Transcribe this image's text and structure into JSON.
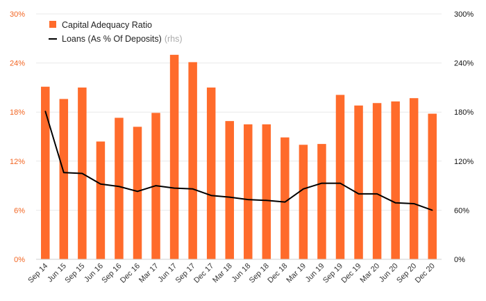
{
  "chart_data": {
    "type": "bar",
    "categories": [
      "Sep 14",
      "Jun 15",
      "Sep 15",
      "Jun 16",
      "Sep 16",
      "Dec 16",
      "Mar 17",
      "Jun 17",
      "Sep 17",
      "Dec 17",
      "Mar 18",
      "Jun 18",
      "Sep 18",
      "Dec 18",
      "Mar 19",
      "Jun 19",
      "Sep 19",
      "Dec 19",
      "Mar 20",
      "Jun 20",
      "Sep 20",
      "Dec 20"
    ],
    "series": [
      {
        "name": "Capital Adequacy Ratio",
        "type": "bar",
        "axis": "left",
        "color": "#ff6b2b",
        "values": [
          21.1,
          19.6,
          21.0,
          14.4,
          17.3,
          16.2,
          17.9,
          25.0,
          24.1,
          21.0,
          16.9,
          16.5,
          16.5,
          14.9,
          14.0,
          14.1,
          20.1,
          18.8,
          19.1,
          19.3,
          19.7,
          17.8
        ]
      },
      {
        "name": "Loans (As % Of Deposits)",
        "note": "(rhs)",
        "type": "line",
        "axis": "right",
        "color": "#000000",
        "values": [
          181,
          106,
          105,
          92,
          89,
          83,
          90,
          87,
          86,
          78,
          76,
          73,
          72,
          70,
          86,
          93,
          93,
          80,
          80,
          69,
          68,
          60
        ]
      }
    ],
    "y_left": {
      "min": 0,
      "max": 30,
      "ticks": [
        0,
        6,
        12,
        18,
        24,
        30
      ],
      "tick_labels": [
        "0%",
        "6%",
        "12%",
        "18%",
        "24%",
        "30%"
      ]
    },
    "y_right": {
      "min": 0,
      "max": 300,
      "ticks": [
        0,
        60,
        120,
        180,
        240,
        300
      ],
      "tick_labels": [
        "0%",
        "60%",
        "120%",
        "180%",
        "240%",
        "300%"
      ]
    },
    "title": "",
    "xlabel": "",
    "ylabel": "",
    "grid": true,
    "legend_position": "top-left"
  }
}
